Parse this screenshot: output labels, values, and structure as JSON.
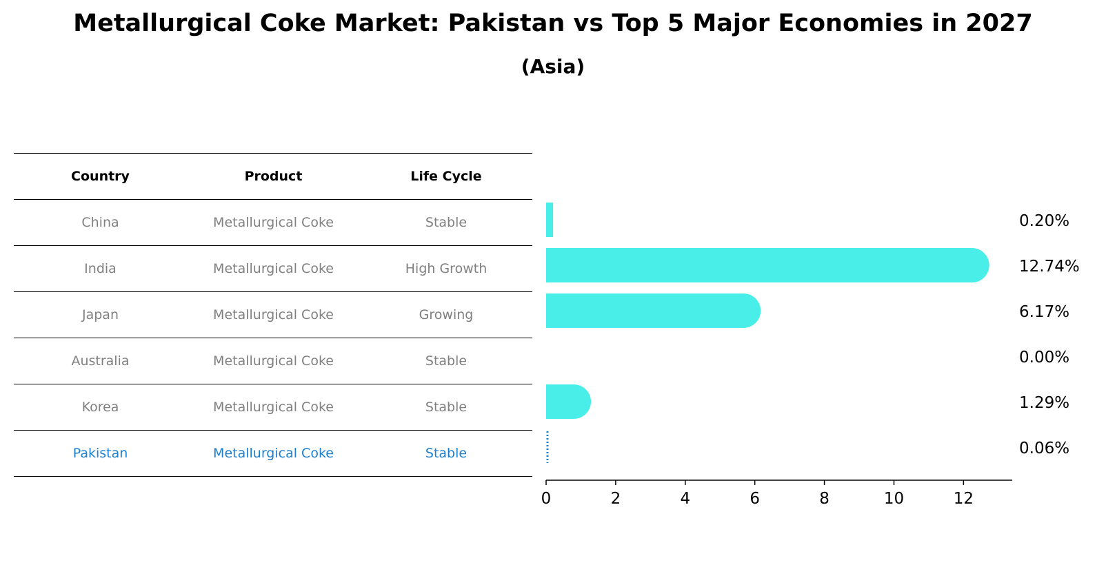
{
  "title": "Metallurgical Coke Market: Pakistan vs Top 5 Major Economies in 2027",
  "subtitle": "(Asia)",
  "table": {
    "headers": [
      "Country",
      "Product",
      "Life Cycle"
    ],
    "rows": [
      [
        "China",
        "Metallurgical Coke",
        "Stable"
      ],
      [
        "India",
        "Metallurgical Coke",
        "High Growth"
      ],
      [
        "Japan",
        "Metallurgical Coke",
        "Growing"
      ],
      [
        "Australia",
        "Metallurgical Coke",
        "Stable"
      ],
      [
        "Korea",
        "Metallurgical Coke",
        "Stable"
      ],
      [
        "Pakistan",
        "Metallurgical Coke",
        "Stable"
      ]
    ],
    "highlight_row": 5
  },
  "colors": {
    "bar": "#4aeee9",
    "highlight": "#1a7fd0",
    "table_text": "#808080"
  },
  "chart_data": {
    "type": "bar",
    "orientation": "horizontal",
    "categories": [
      "China",
      "India",
      "Japan",
      "Australia",
      "Korea",
      "Pakistan"
    ],
    "values": [
      0.2,
      12.74,
      6.17,
      0.0,
      1.29,
      0.06
    ],
    "value_labels": [
      "0.20%",
      "12.74%",
      "6.17%",
      "0.00%",
      "1.29%",
      "0.06%"
    ],
    "xlim": [
      0,
      13.4
    ],
    "xticks": [
      0,
      2,
      4,
      6,
      8,
      10,
      12
    ],
    "grid": false
  }
}
